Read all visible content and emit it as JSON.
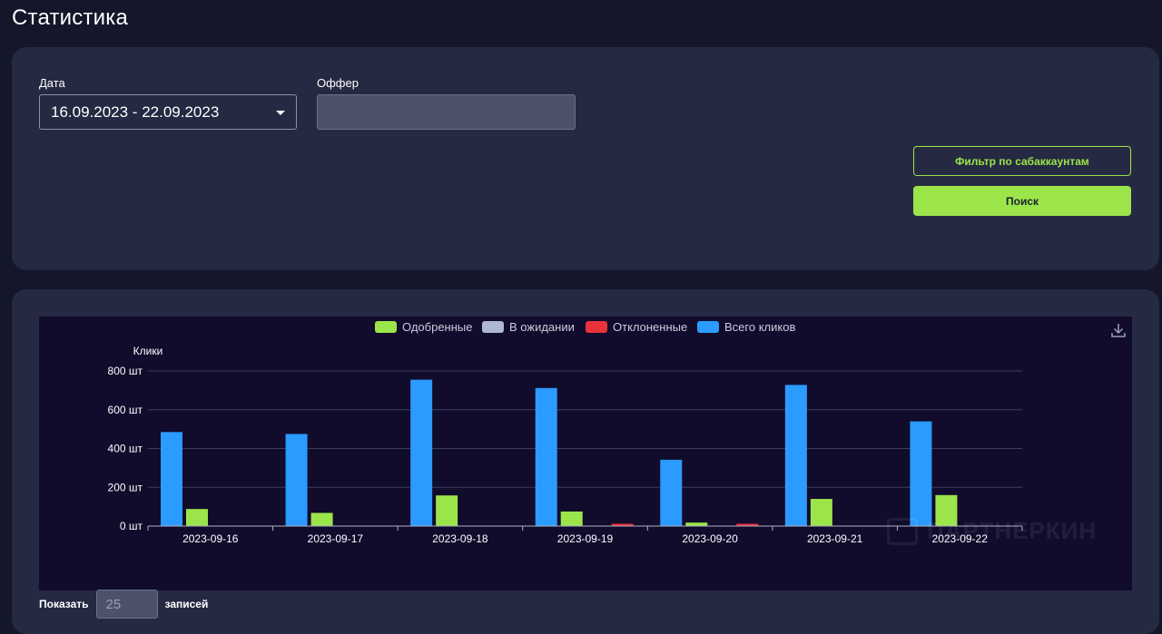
{
  "page": {
    "title": "Статистика"
  },
  "filters": {
    "date_label": "Дата",
    "date_value": "16.09.2023 - 22.09.2023",
    "offer_label": "Оффер",
    "offer_value": "",
    "subaccount_button": "Фильтр по сабаккаунтам",
    "search_button": "Поиск"
  },
  "colors": {
    "accent_green": "#9be54a",
    "approved": "#9be54a",
    "pending": "#aeb8d0",
    "rejected": "#e8323c",
    "clicks": "#2b9bff"
  },
  "chart_data": {
    "type": "bar",
    "ylabel": "Клики",
    "y_unit": "шт",
    "ylim": [
      0,
      800
    ],
    "yticks": [
      "0 шт",
      "200 шт",
      "400 шт",
      "600 шт",
      "800 шт"
    ],
    "yticks_values": [
      0,
      200,
      400,
      600,
      800
    ],
    "grid": true,
    "legend_position": "top-center",
    "categories": [
      "2023-09-16",
      "2023-09-17",
      "2023-09-18",
      "2023-09-19",
      "2023-09-20",
      "2023-09-21",
      "2023-09-22"
    ],
    "series": [
      {
        "name": "Одобренные",
        "color": "#9be54a",
        "values": [
          88,
          68,
          158,
          75,
          18,
          140,
          160
        ]
      },
      {
        "name": "В ожидании",
        "color": "#aeb8d0",
        "values": [
          0,
          0,
          0,
          0,
          0,
          0,
          0
        ]
      },
      {
        "name": "Отклоненные",
        "color": "#e8323c",
        "values": [
          0,
          0,
          0,
          12,
          12,
          0,
          0
        ]
      },
      {
        "name": "Всего кликов",
        "color": "#2b9bff",
        "values": [
          485,
          475,
          755,
          712,
          342,
          728,
          540
        ]
      }
    ]
  },
  "pagination": {
    "show_label": "Показать",
    "page_size": "25",
    "records_label": "записей"
  },
  "watermark": {
    "text": "ПАРТНЕРКИН"
  }
}
